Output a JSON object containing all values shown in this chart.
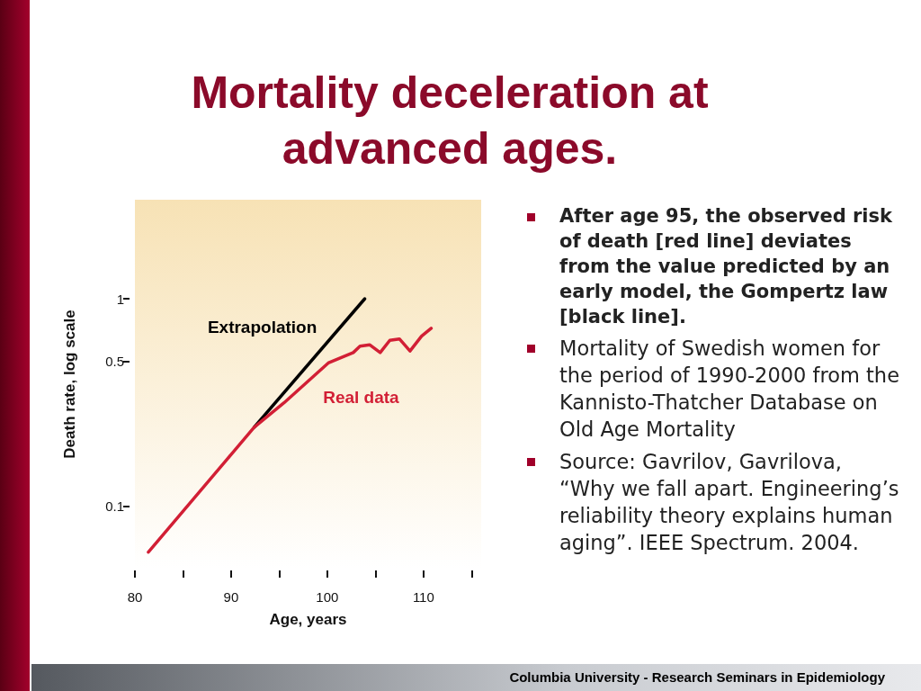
{
  "chart_data": {
    "type": "line",
    "title": "Mortality deceleration at advanced ages.",
    "xlabel": "Age, years",
    "ylabel": "Death rate, log scale",
    "log": "y",
    "marker": "none",
    "line_style": "solid",
    "xlim": [
      80,
      116
    ],
    "xticks": [
      80,
      {
        "value": 85,
        "label": null
      },
      90,
      {
        "value": 95,
        "label": null
      },
      100,
      {
        "value": 105,
        "label": null
      },
      110,
      {
        "value": 115,
        "label": null
      }
    ],
    "ylim": [
      0.05,
      3
    ],
    "yticks": [
      0.1,
      0.5,
      1
    ],
    "series": [
      {
        "name": "Extrapolation",
        "color": "#000000",
        "x": [
          92.4,
          103.9
        ],
        "values": [
          0.24,
          1.0
        ]
      },
      {
        "name": "Real data",
        "color": "#d21f35",
        "x": [
          81.4,
          92.4,
          95.5,
          100.1,
          102.7,
          103.4,
          104.4,
          105.5,
          106.5,
          107.5,
          108.6,
          109.8,
          110.8
        ],
        "values": [
          0.06,
          0.24,
          0.315,
          0.49,
          0.55,
          0.59,
          0.6,
          0.55,
          0.63,
          0.64,
          0.56,
          0.66,
          0.72
        ]
      }
    ],
    "annotations": [
      "After age 95, the observed risk of death [red line] deviates from the value predicted by an early model, the Gompertz law [black line].",
      "Mortality of Swedish women for the period of 1990-2000 from the Kannisto-Thatcher Database on Old Age Mortality",
      "Source: Gavrilov, Gavrilova, “Why we fall apart. Engineering’s reliability theory explains human aging”. IEEE Spectrum. 2004.",
      "Columbia University - Research Seminars in Epidemiology"
    ]
  }
}
